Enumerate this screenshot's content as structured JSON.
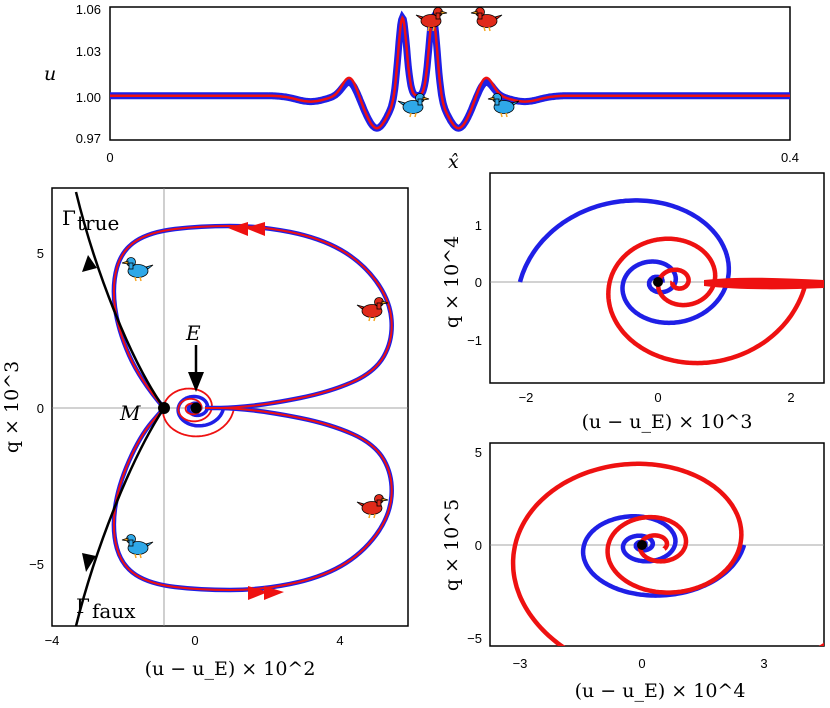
{
  "chart_data": [
    {
      "type": "line",
      "name": "top-profile",
      "ylabel": "u",
      "xlabel": "x̂",
      "xlim": [
        0,
        0.4
      ],
      "ylim": [
        0.97,
        1.06
      ],
      "xticks": [
        "0",
        "0.4"
      ],
      "yticks": [
        "0.97",
        "1.00",
        "1.03",
        "1.06"
      ],
      "series": [
        {
          "name": "blue",
          "color": "#1f1fe6"
        },
        {
          "name": "red",
          "color": "#ee1111"
        }
      ],
      "peaks": {
        "centers": [
          0.172,
          0.19
        ],
        "amplitude": 0.054
      },
      "annotations": [
        "red-duck",
        "red-duck",
        "blue-duck",
        "blue-duck"
      ]
    },
    {
      "type": "line",
      "name": "phase-plane",
      "xlabel": "(u − u_E) × 10^2",
      "ylabel": "q × 10^3",
      "xlim": [
        -4,
        5.8
      ],
      "ylim": [
        -7,
        7
      ],
      "xticks": [
        "−4",
        "0",
        "4"
      ],
      "yticks": [
        "−5",
        "0",
        "5"
      ],
      "labels": {
        "gamma_true": "Γ",
        "gamma_true_sub": "true",
        "gamma_faux": "Γ",
        "gamma_faux_sub": "faux",
        "M": "M",
        "E": "E"
      },
      "points": {
        "M": [
          -0.85,
          0
        ],
        "E": [
          0,
          0
        ]
      },
      "orbit": {
        "xmin": -0.85,
        "xmax": 5.5,
        "ymax": 5.9
      }
    },
    {
      "type": "line",
      "name": "inset-upper",
      "xlabel": "(u − u_E) × 10^3",
      "ylabel": "q × 10^4",
      "xlim": [
        -2.5,
        2.5
      ],
      "ylim": [
        -1.7,
        1.7
      ],
      "xticks": [
        "−2",
        "0",
        "2"
      ],
      "yticks": [
        "−1",
        "0",
        "1"
      ]
    },
    {
      "type": "line",
      "name": "inset-lower",
      "xlabel": "(u − u_E) × 10^4",
      "ylabel": "q × 10^5",
      "xlim": [
        -4,
        4.3
      ],
      "ylim": [
        -5.5,
        5.5
      ],
      "xticks": [
        "−3",
        "0",
        "3"
      ],
      "yticks": [
        "−5",
        "0",
        "5"
      ]
    }
  ],
  "colors": {
    "blue": "#1f1fe6",
    "red": "#ee1111",
    "duck_blue": "#2fa8e8",
    "duck_red": "#e02a1a",
    "black": "#000000",
    "grid": "#888888"
  }
}
